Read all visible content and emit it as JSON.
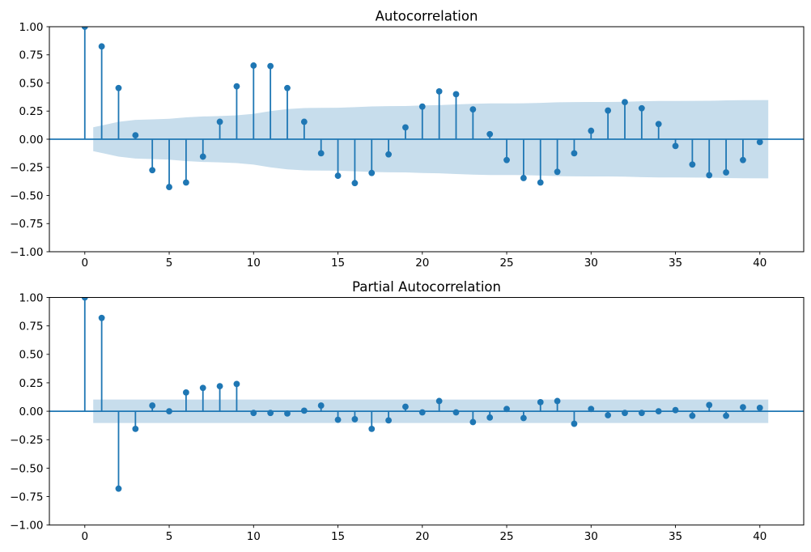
{
  "figure": {
    "background": "#ffffff",
    "accent_color": "#1f77b4",
    "band_color": "#c7ddec",
    "text_color": "#000000"
  },
  "chart_data": [
    {
      "type": "stem",
      "title": "Autocorrelation",
      "xlabel": "",
      "ylabel": "",
      "grid": false,
      "legend": null,
      "xlim": [
        -2.1,
        42.6
      ],
      "ylim": [
        -1.0,
        1.0
      ],
      "xticks": [
        0,
        5,
        10,
        15,
        20,
        25,
        30,
        35,
        40
      ],
      "xtick_labels": [
        "0",
        "5",
        "10",
        "15",
        "20",
        "25",
        "30",
        "35",
        "40"
      ],
      "yticks": [
        1.0,
        0.75,
        0.5,
        0.25,
        0.0,
        -0.25,
        -0.5,
        -0.75,
        -1.0
      ],
      "ytick_labels": [
        "1.00",
        "0.75",
        "0.50",
        "0.25",
        "0.00",
        "−0.25",
        "−0.50",
        "−0.75",
        "−1.00"
      ],
      "lags": [
        0,
        1,
        2,
        3,
        4,
        5,
        6,
        7,
        8,
        9,
        10,
        11,
        12,
        13,
        14,
        15,
        16,
        17,
        18,
        19,
        20,
        21,
        22,
        23,
        24,
        25,
        26,
        27,
        28,
        29,
        30,
        31,
        32,
        33,
        34,
        35,
        36,
        37,
        38,
        39,
        40
      ],
      "values": [
        1.0,
        0.825,
        0.455,
        0.035,
        -0.275,
        -0.425,
        -0.385,
        -0.155,
        0.155,
        0.47,
        0.655,
        0.65,
        0.455,
        0.155,
        -0.125,
        -0.325,
        -0.39,
        -0.3,
        -0.135,
        0.105,
        0.29,
        0.425,
        0.4,
        0.265,
        0.045,
        -0.185,
        -0.345,
        -0.385,
        -0.29,
        -0.125,
        0.075,
        0.255,
        0.33,
        0.275,
        0.135,
        -0.06,
        -0.225,
        -0.32,
        -0.295,
        -0.185,
        -0.025
      ],
      "conf_band": {
        "x_start": 0.5,
        "x_end": 40.5,
        "halfwidths": [
          0.106,
          0.155,
          0.172,
          0.176,
          0.182,
          0.194,
          0.202,
          0.206,
          0.212,
          0.226,
          0.25,
          0.268,
          0.277,
          0.279,
          0.28,
          0.285,
          0.291,
          0.294,
          0.295,
          0.3,
          0.303,
          0.309,
          0.315,
          0.318,
          0.318,
          0.319,
          0.323,
          0.328,
          0.33,
          0.331,
          0.331,
          0.333,
          0.337,
          0.34,
          0.34,
          0.341,
          0.342,
          0.345,
          0.347,
          0.348
        ]
      }
    },
    {
      "type": "stem",
      "title": "Partial Autocorrelation",
      "xlabel": "",
      "ylabel": "",
      "grid": false,
      "legend": null,
      "xlim": [
        -2.1,
        42.6
      ],
      "ylim": [
        -1.0,
        1.0
      ],
      "xticks": [
        0,
        5,
        10,
        15,
        20,
        25,
        30,
        35,
        40
      ],
      "xtick_labels": [
        "0",
        "5",
        "10",
        "15",
        "20",
        "25",
        "30",
        "35",
        "40"
      ],
      "yticks": [
        1.0,
        0.75,
        0.5,
        0.25,
        0.0,
        -0.25,
        -0.5,
        -0.75,
        -1.0
      ],
      "ytick_labels": [
        "1.00",
        "0.75",
        "0.50",
        "0.25",
        "0.00",
        "−0.25",
        "−0.50",
        "−0.75",
        "−1.00"
      ],
      "lags": [
        0,
        1,
        2,
        3,
        4,
        5,
        6,
        7,
        8,
        9,
        10,
        11,
        12,
        13,
        14,
        15,
        16,
        17,
        18,
        19,
        20,
        21,
        22,
        23,
        24,
        25,
        26,
        27,
        28,
        29,
        30,
        31,
        32,
        33,
        34,
        35,
        36,
        37,
        38,
        39,
        40
      ],
      "values": [
        1.0,
        0.82,
        -0.68,
        -0.155,
        0.05,
        0.0,
        0.165,
        0.205,
        0.22,
        0.24,
        -0.015,
        -0.015,
        -0.02,
        0.005,
        0.05,
        -0.075,
        -0.07,
        -0.155,
        -0.08,
        0.04,
        -0.01,
        0.09,
        -0.01,
        -0.095,
        -0.055,
        0.02,
        -0.06,
        0.08,
        0.09,
        -0.11,
        0.02,
        -0.035,
        -0.015,
        -0.015,
        0.0,
        0.01,
        -0.04,
        0.055,
        -0.04,
        0.035,
        0.03
      ],
      "conf_band": {
        "x_start": 0.5,
        "x_end": 40.5,
        "halfwidths": [
          0.103,
          0.103,
          0.103,
          0.103,
          0.103,
          0.103,
          0.103,
          0.103,
          0.103,
          0.103,
          0.103,
          0.103,
          0.103,
          0.103,
          0.103,
          0.103,
          0.103,
          0.103,
          0.103,
          0.103,
          0.103,
          0.103,
          0.103,
          0.103,
          0.103,
          0.103,
          0.103,
          0.103,
          0.103,
          0.103,
          0.103,
          0.103,
          0.103,
          0.103,
          0.103,
          0.103,
          0.103,
          0.103,
          0.103,
          0.103
        ]
      }
    }
  ]
}
